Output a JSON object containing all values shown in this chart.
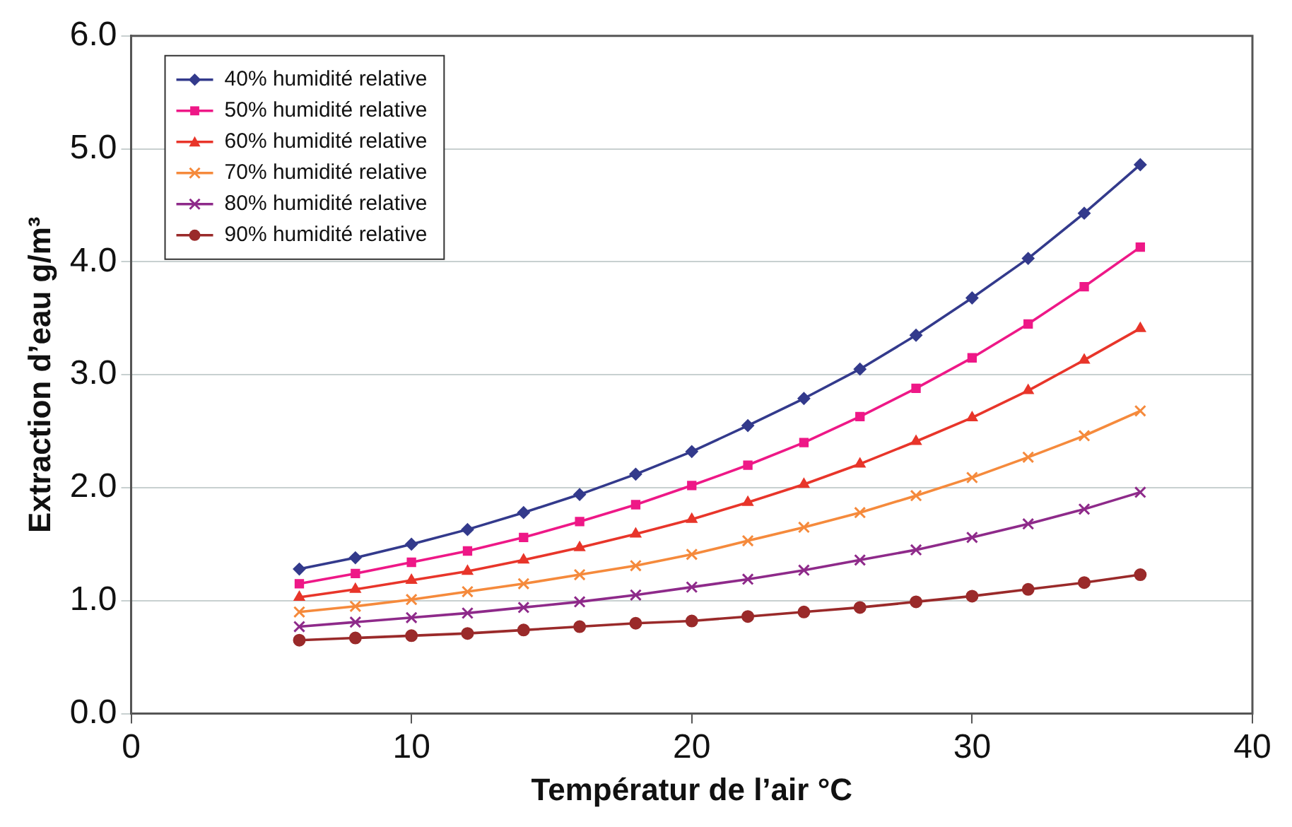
{
  "chart_data": {
    "type": "line",
    "xlabel": "Températur de l’air °C",
    "ylabel": "Extraction d’eau g/m³",
    "x": [
      6,
      8,
      10,
      12,
      14,
      16,
      18,
      20,
      22,
      24,
      26,
      28,
      30,
      32,
      34,
      36
    ],
    "xlim": [
      0,
      40
    ],
    "xticks": [
      0,
      10,
      20,
      30,
      40
    ],
    "ylim": [
      0,
      6
    ],
    "yticks": [
      {
        "value": 0,
        "label": "0.0"
      },
      {
        "value": 1,
        "label": "1.0"
      },
      {
        "value": 2,
        "label": "2.0"
      },
      {
        "value": 3,
        "label": "3.0"
      },
      {
        "value": 4,
        "label": "4.0"
      },
      {
        "value": 5,
        "label": "5.0"
      },
      {
        "value": 6,
        "label": "6.0"
      }
    ],
    "grid": "y",
    "legend": "top left",
    "line_style": "solid",
    "series": [
      {
        "name": "40% humidité relative",
        "color": "#333a8c",
        "marker": "diamond",
        "values": [
          1.28,
          1.38,
          1.5,
          1.63,
          1.78,
          1.94,
          2.12,
          2.32,
          2.55,
          2.79,
          3.05,
          3.35,
          3.68,
          4.03,
          4.43,
          4.86
        ]
      },
      {
        "name": "50% humidité relative",
        "color": "#ee1887",
        "marker": "square",
        "values": [
          1.15,
          1.24,
          1.34,
          1.44,
          1.56,
          1.7,
          1.85,
          2.02,
          2.2,
          2.4,
          2.63,
          2.88,
          3.15,
          3.45,
          3.78,
          4.13
        ]
      },
      {
        "name": "60% humidité relative",
        "color": "#e8352a",
        "marker": "triangle",
        "values": [
          1.03,
          1.1,
          1.18,
          1.26,
          1.36,
          1.47,
          1.59,
          1.72,
          1.87,
          2.03,
          2.21,
          2.41,
          2.62,
          2.86,
          3.13,
          3.41
        ]
      },
      {
        "name": "70% humidité relative",
        "color": "#f58a3c",
        "marker": "cross",
        "values": [
          0.9,
          0.95,
          1.01,
          1.08,
          1.15,
          1.23,
          1.31,
          1.41,
          1.53,
          1.65,
          1.78,
          1.93,
          2.09,
          2.27,
          2.46,
          2.68
        ]
      },
      {
        "name": "80% humidité relative",
        "color": "#8e2a8a",
        "marker": "cross",
        "values": [
          0.77,
          0.81,
          0.85,
          0.89,
          0.94,
          0.99,
          1.05,
          1.12,
          1.19,
          1.27,
          1.36,
          1.45,
          1.56,
          1.68,
          1.81,
          1.96
        ]
      },
      {
        "name": "90% humidité relative",
        "color": "#9a2a2a",
        "marker": "circle",
        "values": [
          0.65,
          0.67,
          0.69,
          0.71,
          0.74,
          0.77,
          0.8,
          0.82,
          0.86,
          0.9,
          0.94,
          0.99,
          1.04,
          1.1,
          1.16,
          1.23
        ]
      }
    ]
  }
}
